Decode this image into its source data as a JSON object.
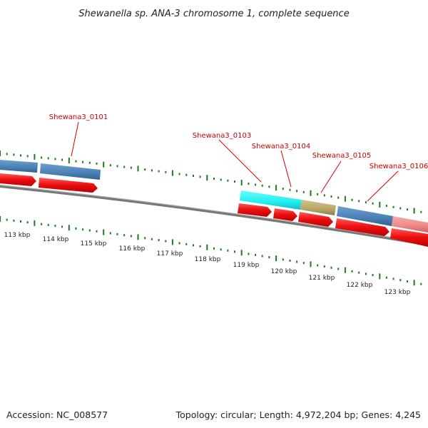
{
  "title": "Shewanella sp. ANA-3 chromosome 1, complete sequence",
  "accession": "Accession: NC_008577",
  "summary": "Topology: circular; Length: 4,972,204 bp; Genes: 4,245",
  "colors": {
    "gene_label": "#cc0000",
    "tick": "#1f7a1f",
    "backbone": "#777777",
    "arrow": "#ee1111",
    "feature_blue": "#4a7fb5",
    "feature_cyan": "#22eeee",
    "feature_olive": "#b8a866",
    "feature_pink": "#ee8888"
  },
  "genes": [
    {
      "name": "Shewana3_0101"
    },
    {
      "name": "Shewana3_0103"
    },
    {
      "name": "Shewana3_0104"
    },
    {
      "name": "Shewana3_0105"
    },
    {
      "name": "Shewana3_0106"
    }
  ],
  "scale_labels": [
    "113 kbp",
    "114 kbp",
    "115 kbp",
    "116 kbp",
    "117 kbp",
    "118 kbp",
    "119 kbp",
    "120 kbp",
    "121 kbp",
    "122 kbp",
    "123 kbp"
  ]
}
